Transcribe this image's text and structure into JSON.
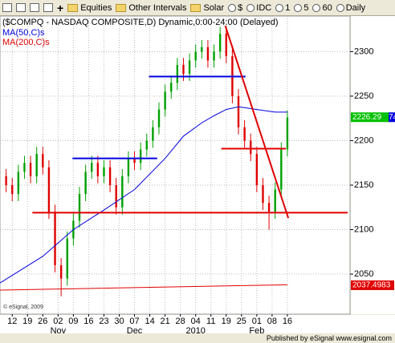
{
  "toolbar": {
    "items": [
      "Equities",
      "Other Intervals",
      "Solar",
      "$",
      "IDC",
      "1",
      "5",
      "60",
      "Daily"
    ]
  },
  "footer": "Published by eSignal www.esignal.com",
  "chart_data": {
    "type": "candlestick",
    "title": "($COMPQ - NASDAQ COMPOSITE,D) Dynamic,0:00-24:00 (Delayed)",
    "copyright": "© eSignal, 2009",
    "up_color": "#00a000",
    "down_color": "#e00000",
    "grid": true,
    "xlim": [
      -4,
      110.5
    ],
    "ylim": [
      2005,
      2340
    ],
    "yticks": [
      2050,
      2100,
      2150,
      2200,
      2250,
      2300
    ],
    "xticks": [
      {
        "value": 0,
        "label": "12"
      },
      {
        "value": 5,
        "label": "19"
      },
      {
        "value": 10,
        "label": "26"
      },
      {
        "value": 15,
        "label": "02"
      },
      {
        "value": 20,
        "label": "09"
      },
      {
        "value": 25,
        "label": "16"
      },
      {
        "value": 30,
        "label": "23"
      },
      {
        "value": 35,
        "label": "30"
      },
      {
        "value": 40,
        "label": "07"
      },
      {
        "value": 45,
        "label": "14"
      },
      {
        "value": 50,
        "label": "21"
      },
      {
        "value": 55,
        "label": "28"
      },
      {
        "value": 60,
        "label": "04"
      },
      {
        "value": 65,
        "label": "11"
      },
      {
        "value": 70,
        "label": "19"
      },
      {
        "value": 75,
        "label": "25"
      },
      {
        "value": 80,
        "label": "01"
      },
      {
        "value": 85,
        "label": "08"
      },
      {
        "value": 90,
        "label": "16"
      }
    ],
    "month_labels": [
      {
        "value": 15,
        "label": "Nov"
      },
      {
        "value": 40,
        "label": "Dec"
      },
      {
        "value": 60,
        "label": "2010"
      },
      {
        "value": 80,
        "label": "Feb"
      }
    ],
    "candles": {
      "x": [
        -2,
        0,
        2,
        4,
        6,
        8,
        10,
        12,
        14,
        16,
        18,
        20,
        22,
        24,
        26,
        28,
        30,
        32,
        34,
        36,
        38,
        40,
        42,
        44,
        46,
        48,
        50,
        52,
        54,
        56,
        58,
        60,
        62,
        64,
        66,
        68,
        70,
        72,
        74,
        76,
        78,
        80,
        82,
        84,
        86,
        88,
        90
      ],
      "open": [
        2160,
        2150,
        2140,
        2165,
        2175,
        2160,
        2185,
        2170,
        2120,
        2060,
        2045,
        2090,
        2110,
        2140,
        2165,
        2175,
        2160,
        2170,
        2150,
        2125,
        2160,
        2180,
        2175,
        2190,
        2200,
        2215,
        2235,
        2255,
        2265,
        2285,
        2275,
        2290,
        2300,
        2305,
        2290,
        2300,
        2320,
        2295,
        2250,
        2215,
        2200,
        2185,
        2150,
        2130,
        2120,
        2145,
        2190
      ],
      "high": [
        2168,
        2158,
        2173,
        2183,
        2183,
        2193,
        2193,
        2178,
        2128,
        2068,
        2098,
        2118,
        2148,
        2173,
        2183,
        2183,
        2178,
        2178,
        2158,
        2168,
        2188,
        2188,
        2198,
        2208,
        2223,
        2243,
        2263,
        2273,
        2293,
        2293,
        2298,
        2308,
        2313,
        2313,
        2308,
        2328,
        2328,
        2303,
        2258,
        2223,
        2208,
        2193,
        2158,
        2138,
        2153,
        2198,
        2234
      ],
      "low": [
        2142,
        2132,
        2132,
        2157,
        2152,
        2152,
        2162,
        2112,
        2052,
        2025,
        2037,
        2082,
        2102,
        2132,
        2157,
        2152,
        2152,
        2142,
        2117,
        2117,
        2152,
        2167,
        2167,
        2182,
        2192,
        2207,
        2227,
        2247,
        2257,
        2267,
        2267,
        2282,
        2292,
        2282,
        2282,
        2292,
        2287,
        2242,
        2207,
        2192,
        2177,
        2142,
        2122,
        2100,
        2112,
        2137,
        2182
      ],
      "close": [
        2150,
        2140,
        2165,
        2175,
        2160,
        2185,
        2170,
        2120,
        2060,
        2045,
        2090,
        2110,
        2140,
        2165,
        2175,
        2160,
        2170,
        2150,
        2125,
        2160,
        2180,
        2175,
        2190,
        2200,
        2215,
        2235,
        2255,
        2265,
        2285,
        2275,
        2290,
        2300,
        2305,
        2290,
        2300,
        2320,
        2295,
        2250,
        2215,
        2200,
        2185,
        2150,
        2130,
        2120,
        2145,
        2190,
        2226
      ]
    },
    "series": [
      {
        "name": "MA(50,C)s",
        "color": "#0000e0",
        "x": [
          -4,
          10,
          20,
          30,
          40,
          50,
          56,
          62,
          66,
          70,
          74,
          78,
          82,
          86,
          90
        ],
        "values": [
          2040,
          2070,
          2100,
          2122,
          2145,
          2180,
          2205,
          2220,
          2228,
          2235,
          2238,
          2236,
          2234,
          2232,
          2232
        ]
      },
      {
        "name": "MA(200,C)s",
        "color": "#e00000",
        "x": [
          -4,
          90
        ],
        "values": [
          2032,
          2038
        ]
      }
    ],
    "trend_lines": [
      {
        "color": "#0000e0",
        "x": [
          19.7,
          47.4
        ],
        "y": [
          2180,
          2180
        ]
      },
      {
        "color": "#0000e0",
        "x": [
          44.7,
          76.3
        ],
        "y": [
          2272,
          2272
        ]
      },
      {
        "color": "#e00000",
        "x": [
          68.4,
          89.5
        ],
        "y": [
          2191,
          2191
        ]
      },
      {
        "color": "#e00000",
        "x": [
          6.6,
          109.7
        ],
        "y": [
          2119,
          2119
        ]
      },
      {
        "color": "#e00000",
        "x": [
          69.7,
          90.3
        ],
        "y": [
          2329,
          2113
        ]
      }
    ],
    "price_labels": [
      {
        "value": 2226.29,
        "label": "2226.29",
        "color": "#00c000"
      },
      {
        "value": 2037.4983,
        "label": "2037.4983",
        "color": "#e00000"
      }
    ],
    "partial_label": "74"
  }
}
